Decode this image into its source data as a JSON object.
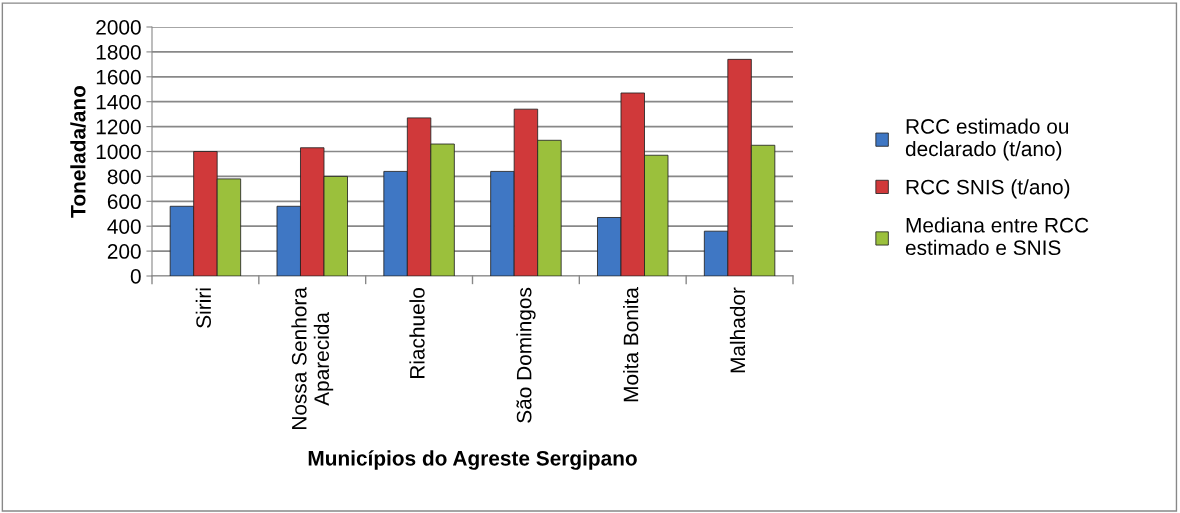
{
  "chart_data": {
    "type": "bar",
    "xlabel": "Municípios do Agreste Sergipano",
    "ylabel": "Tonelada/ano",
    "categories": [
      "Siriri",
      "Nossa Senhora\nAparecida",
      "Riachuelo",
      "São Domingos",
      "Moita Bonita",
      "Malhador"
    ],
    "series": [
      {
        "name": "RCC estimado ou\ndeclarado (t/ano)",
        "color": "#3f77c4",
        "values": [
          560,
          560,
          840,
          840,
          470,
          360
        ]
      },
      {
        "name": "RCC SNIS (t/ano)",
        "color": "#d0393a",
        "values": [
          1000,
          1030,
          1270,
          1340,
          1470,
          1740
        ]
      },
      {
        "name": "Mediana entre RCC\nestimado e SNIS",
        "color": "#9bc03c",
        "values": [
          780,
          800,
          1060,
          1090,
          970,
          1050
        ]
      }
    ],
    "ylim": [
      0,
      2000
    ],
    "yticks": [
      0,
      200,
      400,
      600,
      800,
      1000,
      1200,
      1400,
      1600,
      1800,
      2000
    ],
    "grid": "y",
    "legend": "right"
  }
}
